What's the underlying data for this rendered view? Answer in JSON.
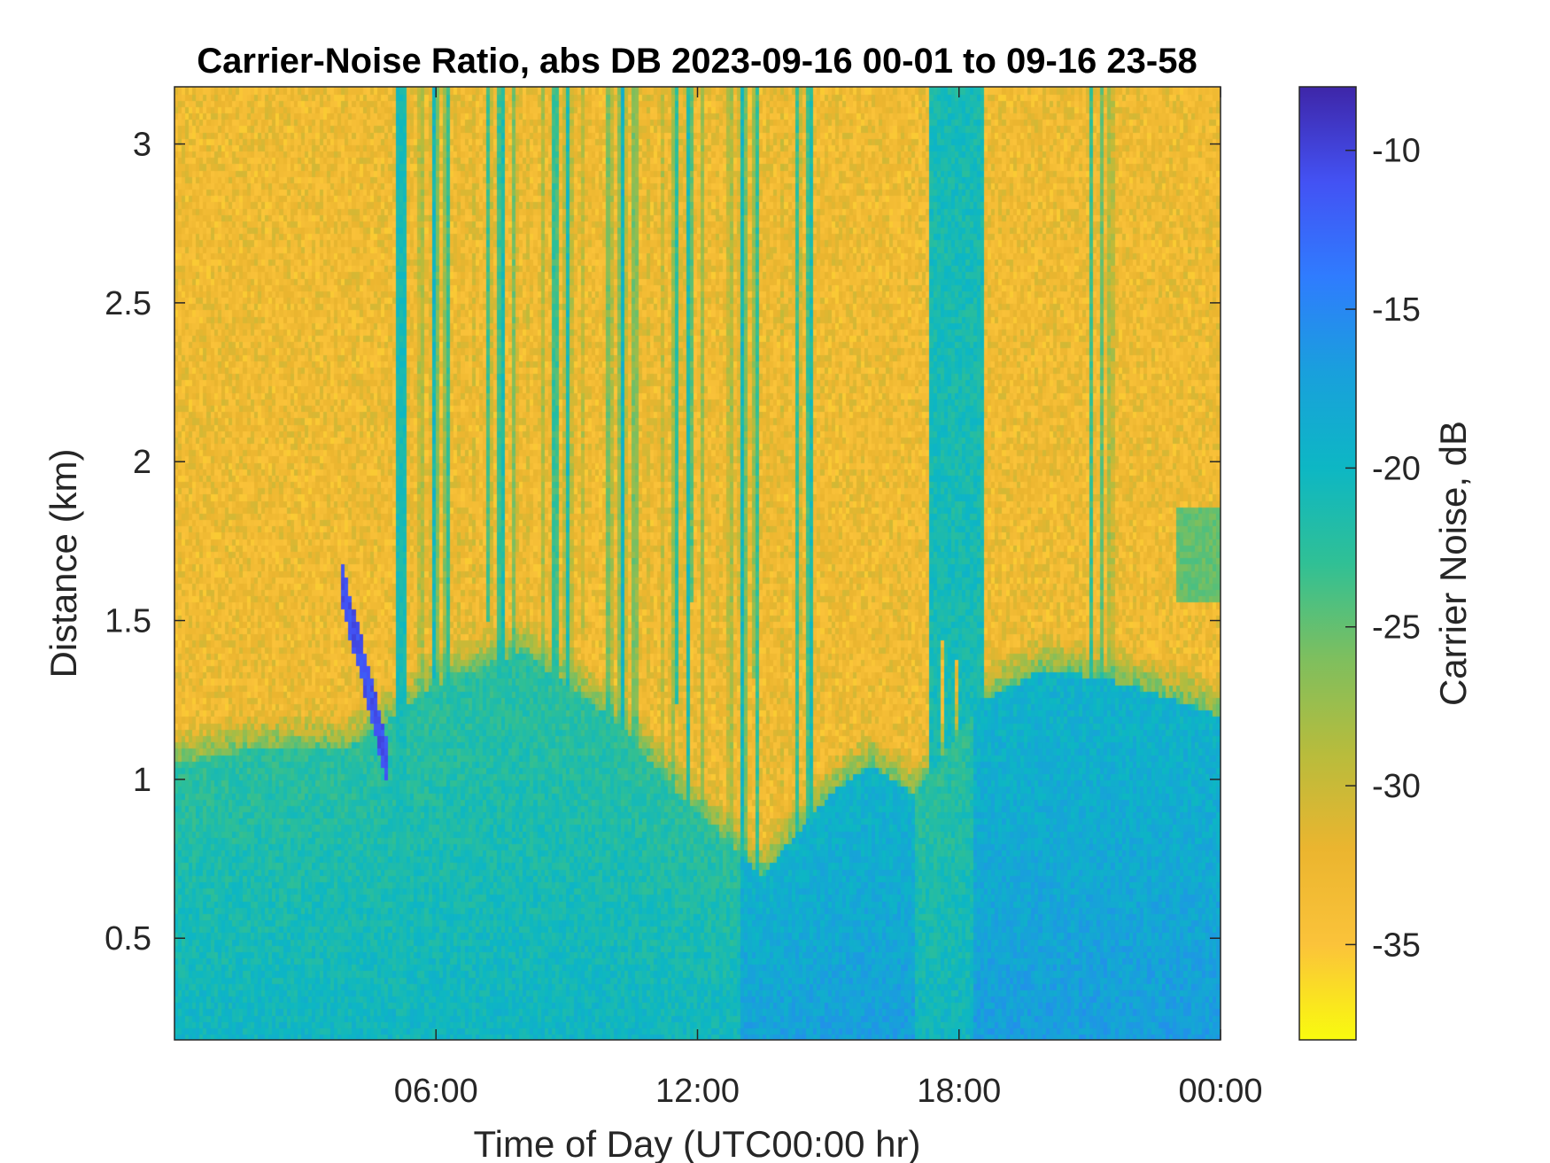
{
  "chart_data": {
    "type": "heatmap",
    "title": "Carrier-Noise Ratio, abs DB 2023-09-16 00-01 to 09-16 23-58",
    "xlabel": "Time of Day (UTC00:00 hr)",
    "ylabel": "Distance (km)",
    "colorbar_label": "Carrier Noise, dB",
    "x_ticks": [
      {
        "value": 6,
        "label": "06:00"
      },
      {
        "value": 12,
        "label": "12:00"
      },
      {
        "value": 18,
        "label": "18:00"
      },
      {
        "value": 24,
        "label": "00:00"
      }
    ],
    "y_ticks": [
      {
        "value": 0.5,
        "label": "0.5"
      },
      {
        "value": 1.0,
        "label": "1"
      },
      {
        "value": 1.5,
        "label": "1.5"
      },
      {
        "value": 2.0,
        "label": "2"
      },
      {
        "value": 2.5,
        "label": "2.5"
      },
      {
        "value": 3.0,
        "label": "3"
      }
    ],
    "colorbar_ticks": [
      {
        "value": -10,
        "label": "-10"
      },
      {
        "value": -15,
        "label": "-15"
      },
      {
        "value": -20,
        "label": "-20"
      },
      {
        "value": -25,
        "label": "-25"
      },
      {
        "value": -30,
        "label": "-30"
      },
      {
        "value": -35,
        "label": "-35"
      }
    ],
    "xlim": [
      0,
      24
    ],
    "ylim": [
      0.18,
      3.18
    ],
    "clim": [
      -38,
      -8
    ],
    "colormap": "parula-reversed",
    "colormap_stops": [
      "#3e26a8",
      "#4352f4",
      "#2f7cfe",
      "#19a0dc",
      "#0db7c4",
      "#30c095",
      "#7ebf5e",
      "#b8bc3c",
      "#ebb52f",
      "#fbc33a",
      "#f9fb0e"
    ],
    "features": [
      {
        "description_type": "boundary_layer_top_km",
        "times_hr": [
          0,
          2,
          4,
          6,
          8,
          10,
          12,
          13.5,
          15,
          16,
          17,
          18.5,
          20,
          22,
          24
        ],
        "heights_km": [
          1.05,
          1.1,
          1.1,
          1.3,
          1.4,
          1.2,
          0.9,
          0.7,
          0.95,
          1.05,
          0.95,
          1.25,
          1.35,
          1.3,
          1.2
        ]
      },
      {
        "description_type": "enhanced_return_km",
        "time_hr": [
          3.8,
          4.9
        ],
        "height_km": [
          1.05,
          1.65
        ],
        "value_db": -11
      },
      {
        "description_type": "cloud_streaks",
        "time_hr": [
          5.2,
          14.5
        ],
        "value_db": -21
      },
      {
        "description_type": "column_event",
        "time_hr": [
          17.3,
          18.5
        ],
        "value_db": -20
      }
    ]
  }
}
